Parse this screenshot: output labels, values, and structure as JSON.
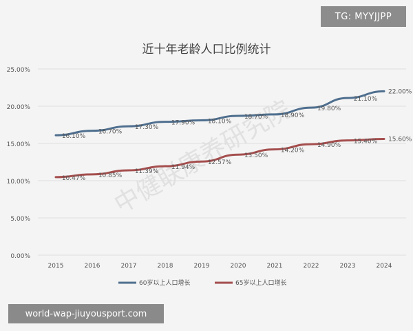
{
  "overlay": {
    "tag_text": "TG: MYYJJPP",
    "footer_text": "world-wap-jiuyousport.com"
  },
  "watermark": {
    "text": "中健联康养研究院"
  },
  "colors": {
    "series_60": "#4f6f8f",
    "series_65": "#a54e4e",
    "grid": "#dedede",
    "text": "#555555",
    "title": "#444444",
    "background": "#f4f4f4"
  },
  "chart_data": {
    "type": "line",
    "title": "近十年老龄人口比例统计",
    "xlabel": "",
    "ylabel": "",
    "x": [
      "2015",
      "2016",
      "2017",
      "2018",
      "2019",
      "2020",
      "2021",
      "2022",
      "2023",
      "2024"
    ],
    "y_ticks": [
      "0.00%",
      "5.00%",
      "10.00%",
      "15.00%",
      "20.00%",
      "25.00%"
    ],
    "ylim": [
      0,
      25
    ],
    "grid": true,
    "legend_position": "bottom",
    "series": [
      {
        "name": "60岁以上人口增长",
        "color": "#4f6f8f",
        "values": [
          16.1,
          16.7,
          17.3,
          17.9,
          18.1,
          18.7,
          18.9,
          19.8,
          21.1,
          22.0
        ],
        "labels": [
          "16.10%",
          "16.70%",
          "17.30%",
          "17.90%",
          "18.10%",
          "18.70%",
          "18.90%",
          "19.80%",
          "21.10%",
          "22.00%"
        ]
      },
      {
        "name": "65岁以上人口增长",
        "color": "#a54e4e",
        "values": [
          10.47,
          10.85,
          11.39,
          11.94,
          12.57,
          13.5,
          14.2,
          14.9,
          15.4,
          15.6
        ],
        "labels": [
          "10.47%",
          "10.85%",
          "11.39%",
          "11.94%",
          "12.57%",
          "13.50%",
          "14.20%",
          "14.90%",
          "15.40%",
          "15.60%"
        ]
      }
    ]
  }
}
